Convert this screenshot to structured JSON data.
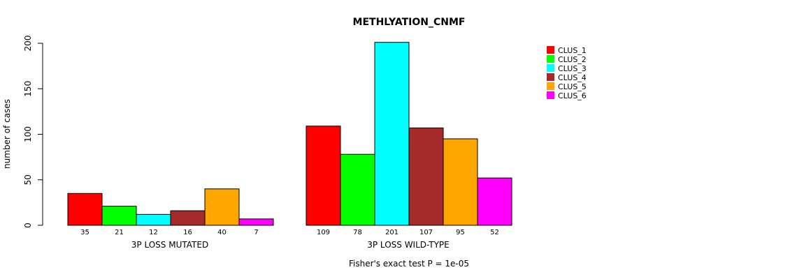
{
  "chart_data": {
    "type": "bar",
    "title": "METHLYATION_CNMF",
    "ylabel": "number of cases",
    "ylim": [
      0,
      200
    ],
    "yticks": [
      0,
      50,
      100,
      150,
      200
    ],
    "groups": [
      "3P LOSS MUTATED",
      "3P LOSS WILD-TYPE"
    ],
    "series": [
      {
        "name": "CLUS_1",
        "color": "#ff0000",
        "values": [
          35,
          109
        ]
      },
      {
        "name": "CLUS_2",
        "color": "#00ff00",
        "values": [
          21,
          78
        ]
      },
      {
        "name": "CLUS_3",
        "color": "#00ffff",
        "values": [
          12,
          201
        ]
      },
      {
        "name": "CLUS_4",
        "color": "#a52a2a",
        "values": [
          16,
          107
        ]
      },
      {
        "name": "CLUS_5",
        "color": "#ffa500",
        "values": [
          40,
          95
        ]
      },
      {
        "name": "CLUS_6",
        "color": "#ff00ff",
        "values": [
          7,
          52
        ]
      }
    ],
    "legend_position": "top-right",
    "footnote": "Fisher's exact test P = 1e-05"
  }
}
